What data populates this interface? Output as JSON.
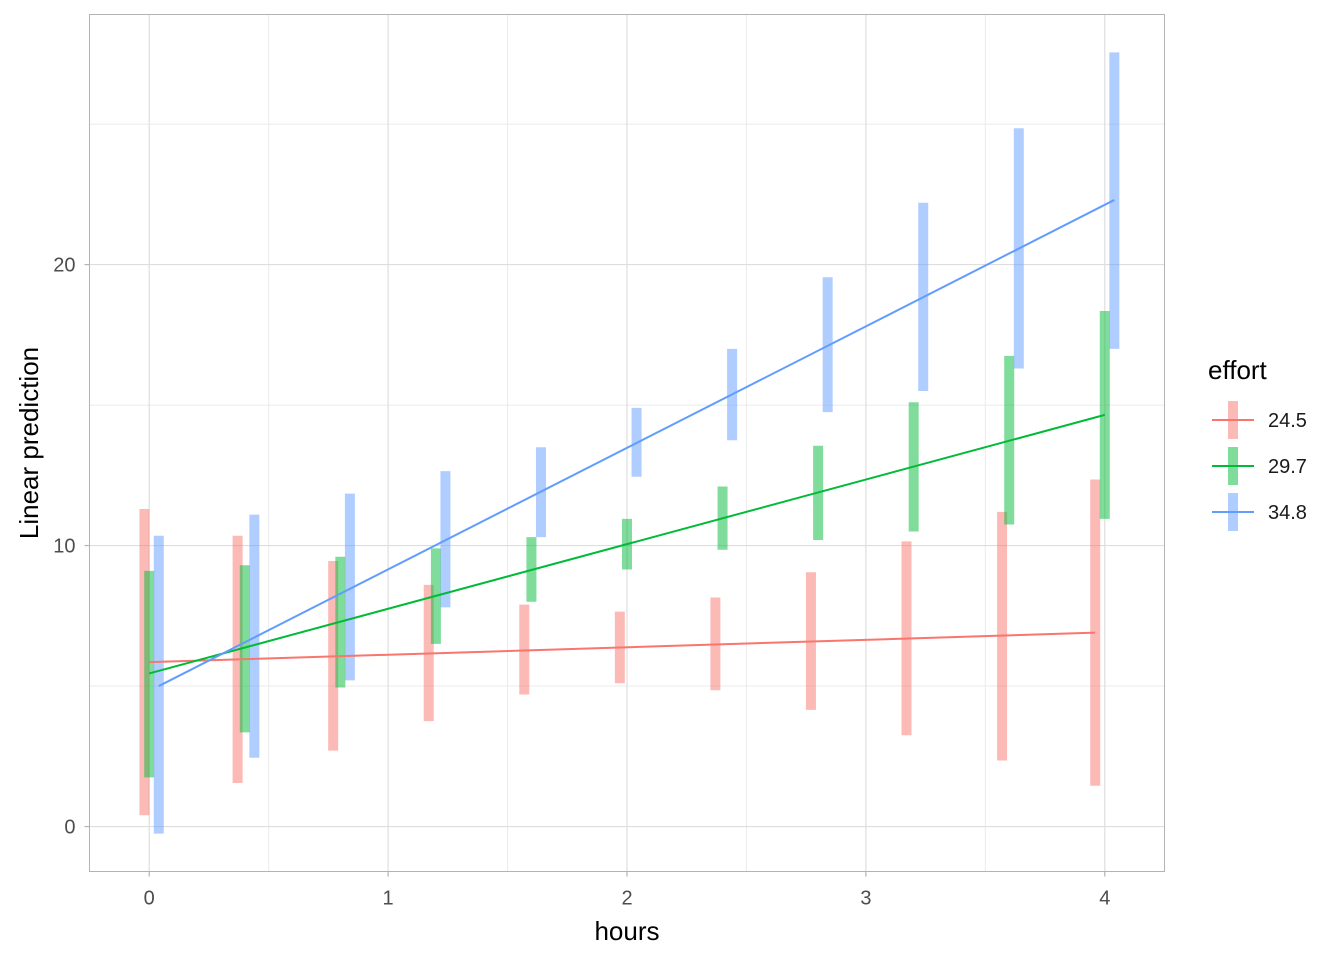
{
  "chart_data": {
    "type": "line",
    "xlabel": "hours",
    "ylabel": "Linear prediction",
    "xlim": [
      -0.25,
      4.25
    ],
    "ylim": [
      -1.6,
      28.9
    ],
    "x_ticks": [
      0,
      1,
      2,
      3,
      4
    ],
    "y_ticks": [
      0,
      10,
      20
    ],
    "grid": true,
    "legend": {
      "title": "effort",
      "position": "right"
    },
    "x": [
      0,
      0.4,
      0.8,
      1.2,
      1.6,
      2.0,
      2.4,
      2.8,
      3.2,
      3.6,
      4.0
    ],
    "series": [
      {
        "name": "24.5",
        "color": "#F8766D",
        "line": [
          [
            0,
            5.85
          ],
          [
            3.96,
            6.9
          ]
        ],
        "intervals": [
          [
            -0.02,
            0.4,
            11.3
          ],
          [
            0.37,
            1.55,
            10.35
          ],
          [
            0.77,
            2.7,
            9.45
          ],
          [
            1.17,
            3.75,
            8.6
          ],
          [
            1.57,
            4.7,
            7.9
          ],
          [
            1.97,
            5.1,
            7.65
          ],
          [
            2.37,
            4.85,
            8.15
          ],
          [
            2.77,
            4.15,
            9.05
          ],
          [
            3.17,
            3.25,
            10.15
          ],
          [
            3.57,
            2.35,
            11.2
          ],
          [
            3.96,
            1.45,
            12.35
          ]
        ]
      },
      {
        "name": "29.7",
        "color": "#00BA38",
        "line": [
          [
            0,
            5.45
          ],
          [
            4.0,
            14.65
          ]
        ],
        "intervals": [
          [
            0.0,
            1.75,
            9.1
          ],
          [
            0.4,
            3.35,
            9.3
          ],
          [
            0.8,
            4.95,
            9.6
          ],
          [
            1.2,
            6.5,
            9.9
          ],
          [
            1.6,
            8.0,
            10.3
          ],
          [
            2.0,
            9.15,
            10.95
          ],
          [
            2.4,
            9.85,
            12.1
          ],
          [
            2.8,
            10.2,
            13.55
          ],
          [
            3.2,
            10.5,
            15.1
          ],
          [
            3.6,
            10.75,
            16.75
          ],
          [
            4.0,
            10.95,
            18.35
          ]
        ]
      },
      {
        "name": "34.8",
        "color": "#619CFF",
        "line": [
          [
            0.04,
            5.0
          ],
          [
            4.04,
            22.3
          ]
        ],
        "intervals": [
          [
            0.04,
            -0.25,
            10.35
          ],
          [
            0.44,
            2.45,
            11.1
          ],
          [
            0.84,
            5.2,
            11.85
          ],
          [
            1.24,
            7.8,
            12.65
          ],
          [
            1.64,
            10.3,
            13.5
          ],
          [
            2.04,
            12.45,
            14.9
          ],
          [
            2.44,
            13.75,
            17.0
          ],
          [
            2.84,
            14.75,
            19.55
          ],
          [
            3.24,
            15.5,
            22.2
          ],
          [
            3.64,
            16.3,
            24.85
          ],
          [
            4.04,
            17.0,
            27.55
          ]
        ]
      }
    ]
  }
}
